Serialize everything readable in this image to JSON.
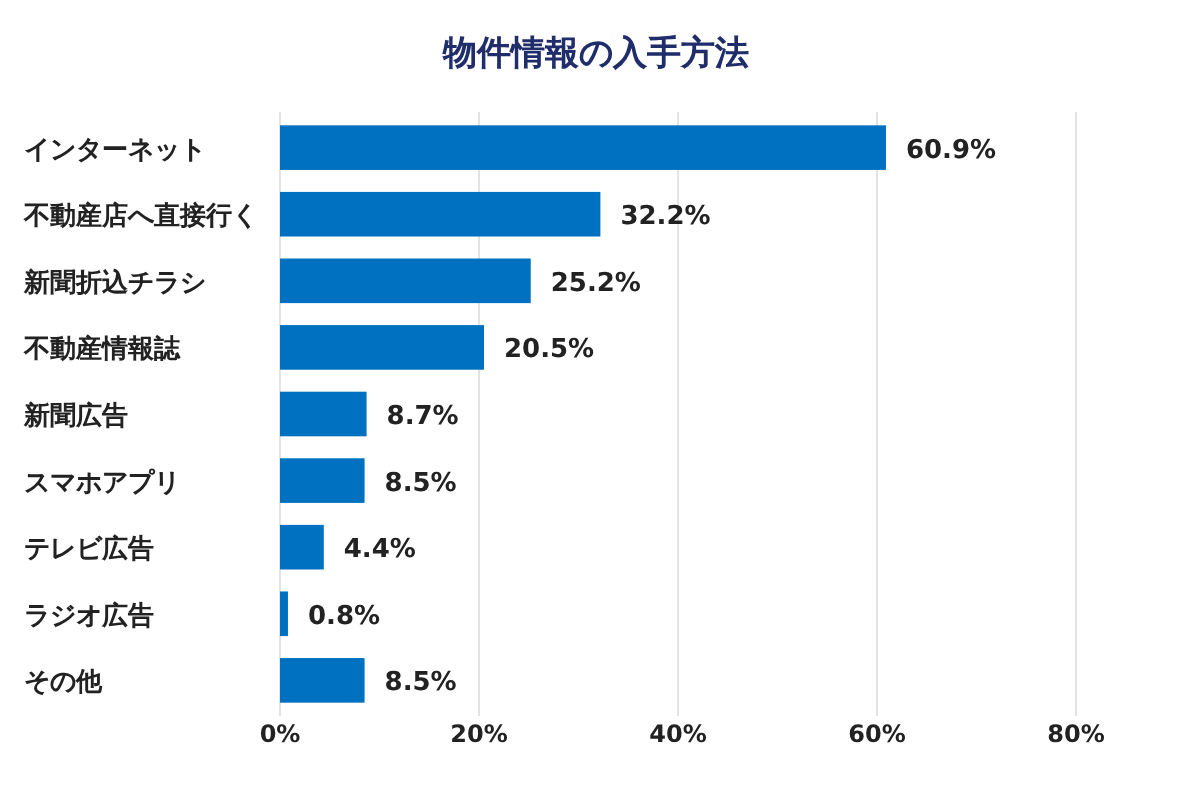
{
  "chart_data": {
    "type": "bar",
    "orientation": "horizontal",
    "title": "物件情報の入手方法",
    "categories": [
      "インターネット",
      "不動産店へ直接行く",
      "新聞折込チラシ",
      "不動産情報誌",
      "新聞広告",
      "スマホアプリ",
      "テレビ広告",
      "ラジオ広告",
      "その他"
    ],
    "values": [
      60.9,
      32.2,
      25.2,
      20.5,
      8.7,
      8.5,
      4.4,
      0.8,
      8.5
    ],
    "value_labels": [
      "60.9%",
      "32.2%",
      "25.2%",
      "20.5%",
      "8.7%",
      "8.5%",
      "4.4%",
      "0.8%",
      "8.5%"
    ],
    "color": "#0070c0",
    "xlim": [
      0,
      80
    ],
    "xticks": [
      {
        "value": 0,
        "label": "0%"
      },
      {
        "value": 20,
        "label": "20%"
      },
      {
        "value": 40,
        "label": "40%"
      },
      {
        "value": 60,
        "label": "60%"
      },
      {
        "value": 80,
        "label": "80%"
      }
    ],
    "grid": "x"
  }
}
